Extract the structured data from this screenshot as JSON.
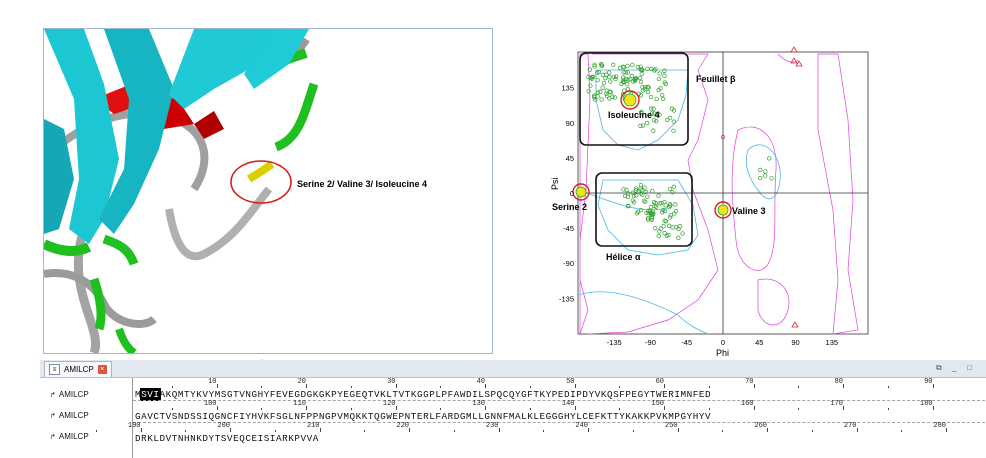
{
  "viewer": {
    "annotation": "Serine 2/ Valine 3/ Isoleucine 4"
  },
  "ramachandran": {
    "ylabel": "Psi",
    "xlabel": "Phi",
    "x_ticks": [
      "-135",
      "-90",
      "-45",
      "0",
      "45",
      "90",
      "135"
    ],
    "y_ticks": [
      "135",
      "90",
      "45",
      "0",
      "-45",
      "-90",
      "-135"
    ],
    "region_beta": "Feuillet β",
    "region_alpha": "Hélice α",
    "label_ile": "Isoleucine 4",
    "label_ser": "Serine 2",
    "label_val": "Valine 3",
    "colors": {
      "favored": "#49b6e8",
      "allowed": "#e040e0",
      "points": "#2aa02a",
      "outlier": "#d03030",
      "highlight": "#f2e21a"
    }
  },
  "tab": {
    "label": "AMILCP"
  },
  "sequences": {
    "names": [
      "AMILCP",
      "AMILCP",
      "AMILCP"
    ],
    "row1_hl": "SVI",
    "row1_pre": "M",
    "row1_post": "AKQMTYKVYMSGTVNGHYFEVEGDGKGKPYEGEQTVKLTVTKGGPLPFAWDILSPQCQYGFTKYPEDIPDYVKQSFPEGYTWERIMNFED",
    "row2": "GAVCTVSNDSSIQGNCFIYHVKFSGLNFPPNGPVMQKKTQGWEPNTERLFARDGMLLGNNFMALKLEGGGHYLCEFKTTYKAKKPVKMPGYHYV",
    "row3": "DRKLDVTNHNKDYTSVEQCEISIARKPVVA",
    "ruler1": [
      "10",
      "20",
      "30",
      "40",
      "50",
      "60",
      "70",
      "80",
      "90"
    ],
    "ruler2": [
      "100",
      "110",
      "120",
      "130",
      "140",
      "150",
      "160",
      "170",
      "180"
    ],
    "ruler3": [
      "190",
      "200",
      "210",
      "220",
      "230",
      "240",
      "250",
      "260",
      "270",
      "280"
    ]
  }
}
